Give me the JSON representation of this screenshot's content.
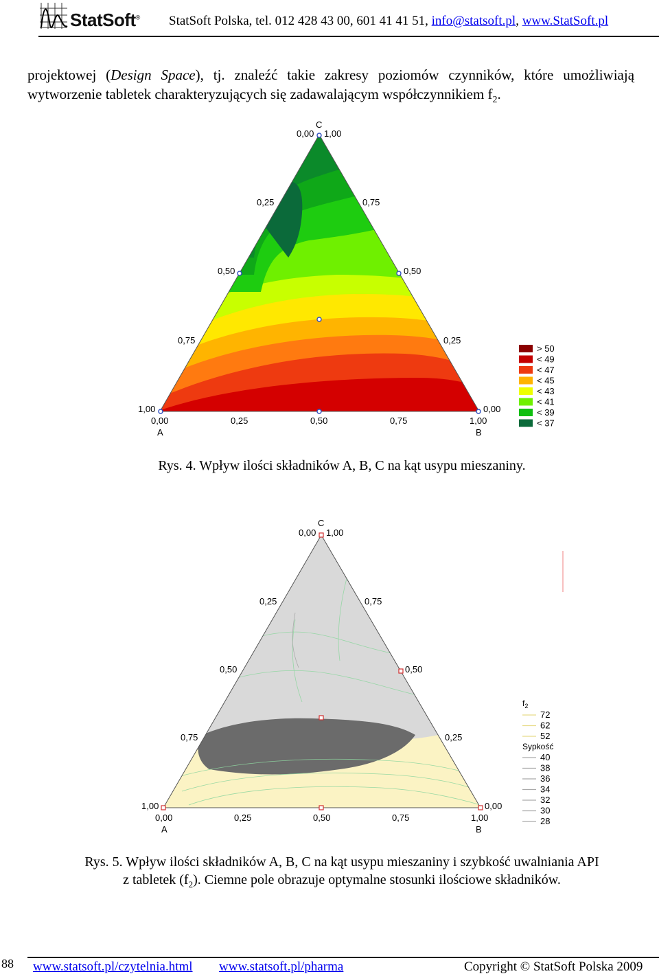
{
  "header": {
    "logo_text": "StatSoft",
    "logo_reg": "®",
    "contact_prefix": "StatSoft Polska, tel. 012 428 43 00, 601 41 41 51, ",
    "email": "info@statsoft.pl",
    "separator": ", ",
    "website": "www.StatSoft.pl"
  },
  "intro": {
    "line_prefix": "projektowej (",
    "italic_term": "Design Space",
    "line_suffix": "), tj. znaleźć takie zakresy poziomów czynników, które umożliwiają wytworzenie tabletek charakteryzujących się zadawalającym współczynnikiem f",
    "subscript": "2",
    "end": "."
  },
  "figure4": {
    "caption": "Rys. 4. Wpływ ilości składników A, B, C na kąt usypu mieszaniny.",
    "vertex_c": "C",
    "vertex_a": "A",
    "vertex_b": "B",
    "labels": {
      "top": "0,00",
      "top_r": "1,00",
      "l025": "0,25",
      "r075": "0,75",
      "l050": "0,50",
      "r050": "0,50",
      "l075": "0,75",
      "r025": "0,25",
      "bl100": "1,00",
      "br000": "0,00",
      "b000": "0,00",
      "b025": "0,25",
      "b050": "0,50",
      "b075": "0,75",
      "b100": "1,00"
    },
    "legend": [
      {
        "label": "> 50",
        "color": "#8b0000"
      },
      {
        "label": "< 49",
        "color": "#c40000"
      },
      {
        "label": "< 47",
        "color": "#ee3a10"
      },
      {
        "label": "< 45",
        "color": "#ffb400"
      },
      {
        "label": "< 43",
        "color": "#eeff00"
      },
      {
        "label": "< 41",
        "color": "#6ff000"
      },
      {
        "label": "< 39",
        "color": "#0fbf10"
      },
      {
        "label": "< 37",
        "color": "#0b6a3a"
      }
    ]
  },
  "figure5": {
    "caption_line1": "Rys. 5. Wpływ ilości składników A, B, C na kąt usypu mieszaniny i szybkość uwalniania API",
    "caption_line2_prefix": "z tabletek (f",
    "caption_sub": "2",
    "caption_line2_suffix": "). Ciemne pole obrazuje optymalne stosunki ilościowe składników.",
    "vertex_c": "C",
    "vertex_a": "A",
    "vertex_b": "B",
    "labels": {
      "top": "0,00",
      "top_r": "1,00",
      "l025": "0,25",
      "r075": "0,75",
      "l050": "0,50",
      "r050": "0,50",
      "l075": "0,75",
      "r025": "0,25",
      "bl100": "1,00",
      "br000": "0,00",
      "b000": "0,00",
      "b025": "0,25",
      "b050": "0,50",
      "b075": "0,75",
      "b100": "1,00"
    },
    "legend_title_f2": "f",
    "legend_title_f2_sub": "2",
    "legend_f2": [
      "72",
      "62",
      "52"
    ],
    "legend_title_sypkosc": "Sypkość",
    "legend_sypkosc": [
      "40",
      "38",
      "36",
      "34",
      "32",
      "30",
      "28"
    ]
  },
  "footer": {
    "page_number": "88",
    "link1": "www.statsoft.pl/czytelnia.html",
    "link2": "www.statsoft.pl/pharma",
    "copyright": "Copyright © StatSoft Polska 2009"
  }
}
